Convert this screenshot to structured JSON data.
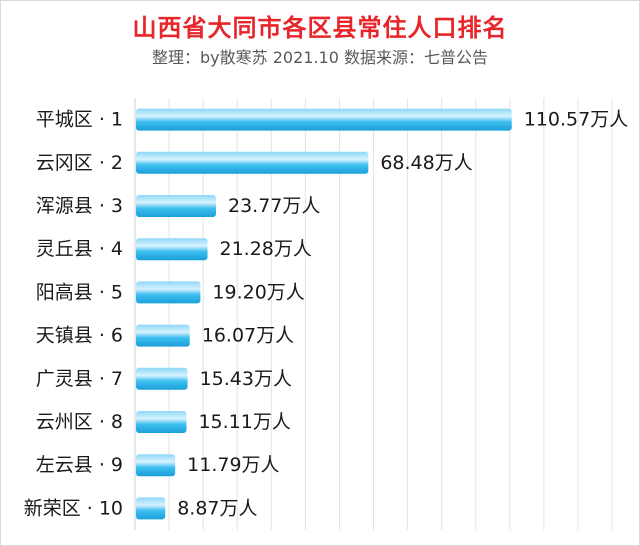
{
  "header": {
    "title": "山西省大同市各区县常住人口排名",
    "subtitle": "整理：by散寒苏  2021.10  数据来源：七普公告"
  },
  "chart_data": {
    "type": "bar",
    "orientation": "horizontal",
    "title": "山西省大同市各区县常住人口排名",
    "subtitle": "整理：by散寒苏  2021.10  数据来源：七普公告",
    "categories": [
      "平城区 · 1",
      "云冈区 · 2",
      "浑源县 · 3",
      "灵丘县 · 4",
      "阳高县 · 5",
      "天镇县 · 6",
      "广灵县 · 7",
      "云州区 · 8",
      "左云县 · 9",
      "新荣区 · 10"
    ],
    "values": [
      110.57,
      68.48,
      23.77,
      21.28,
      19.2,
      16.07,
      15.43,
      15.11,
      11.79,
      8.87
    ],
    "value_labels": [
      "110.57万人",
      "68.48万人",
      "23.77万人",
      "21.28万人",
      "19.20万人",
      "16.07万人",
      "15.43万人",
      "15.11万人",
      "11.79万人",
      "8.87万人"
    ],
    "unit": "万人",
    "xlim": [
      0,
      140
    ],
    "grid": true,
    "bar_color": "#29b6ec",
    "bar_highlight_color": "#bfeaff"
  }
}
